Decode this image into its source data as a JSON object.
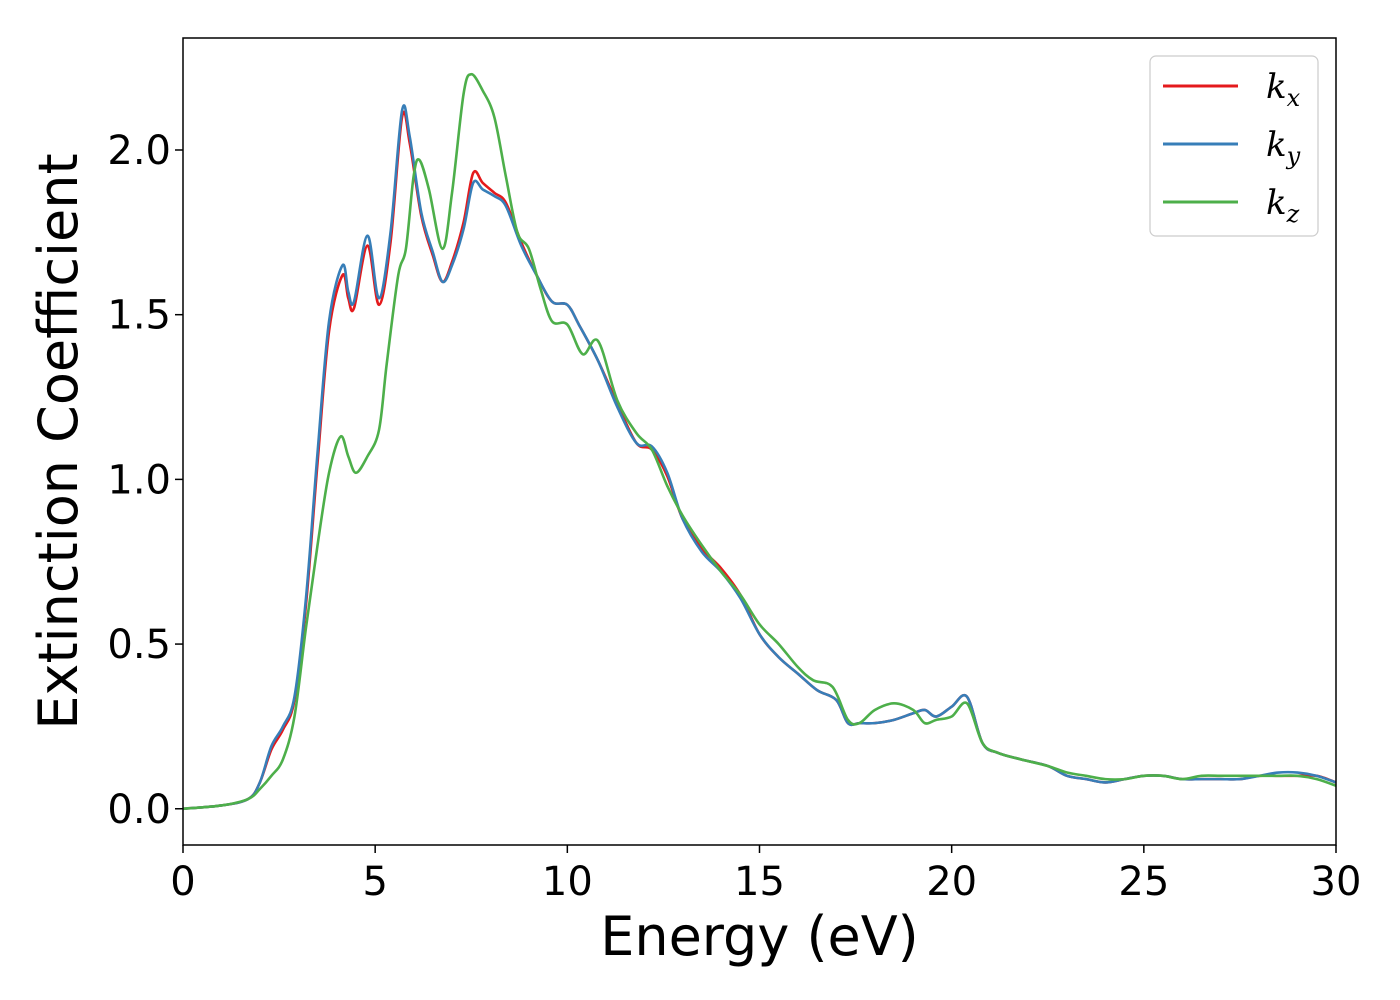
{
  "chart_data": {
    "type": "line",
    "xlabel": "Energy (eV)",
    "ylabel": "Extinction Coefficient",
    "xlim": [
      0,
      30
    ],
    "ylim": [
      -0.11,
      2.34
    ],
    "xticks": [
      0,
      5,
      10,
      15,
      20,
      25,
      30
    ],
    "xtick_labels": [
      "0",
      "5",
      "10",
      "15",
      "20",
      "25",
      "30"
    ],
    "yticks": [
      0.0,
      0.5,
      1.0,
      1.5,
      2.0
    ],
    "ytick_labels": [
      "0.0",
      "0.5",
      "1.0",
      "1.5",
      "2.0"
    ],
    "grid": false,
    "legend_position": "top-right",
    "series": [
      {
        "name": "k",
        "subscript": "x",
        "color": "#e41a1c",
        "x": [
          0,
          1,
          1.7,
          2,
          2.3,
          2.6,
          2.9,
          3.2,
          3.5,
          3.8,
          4.15,
          4.3,
          4.45,
          4.8,
          5.1,
          5.4,
          5.7,
          5.9,
          6.2,
          6.5,
          6.75,
          7.0,
          7.3,
          7.55,
          7.8,
          8.1,
          8.4,
          8.8,
          9.2,
          9.6,
          10.0,
          10.3,
          10.8,
          11.3,
          11.8,
          12.2,
          12.6,
          13.0,
          13.5,
          14.0,
          14.5,
          15.0,
          15.5,
          16.0,
          16.5,
          17.0,
          17.3,
          17.6,
          18.0,
          18.5,
          19.0,
          19.3,
          19.6,
          20.0,
          20.4,
          20.8,
          21.2,
          21.8,
          22.5,
          23.0,
          23.5,
          24.0,
          24.5,
          25.0,
          25.5,
          26.0,
          26.5,
          27.0,
          27.5,
          28.0,
          28.5,
          29.0,
          29.5,
          30.0
        ],
        "y": [
          0.0,
          0.01,
          0.03,
          0.08,
          0.18,
          0.24,
          0.33,
          0.62,
          1.05,
          1.45,
          1.62,
          1.55,
          1.52,
          1.71,
          1.53,
          1.72,
          2.1,
          2.02,
          1.8,
          1.68,
          1.6,
          1.66,
          1.78,
          1.93,
          1.9,
          1.87,
          1.84,
          1.72,
          1.62,
          1.54,
          1.53,
          1.47,
          1.36,
          1.23,
          1.11,
          1.09,
          1.01,
          0.88,
          0.79,
          0.73,
          0.65,
          0.53,
          0.46,
          0.41,
          0.36,
          0.33,
          0.26,
          0.26,
          0.26,
          0.27,
          0.29,
          0.3,
          0.28,
          0.31,
          0.34,
          0.2,
          0.17,
          0.15,
          0.13,
          0.1,
          0.09,
          0.08,
          0.09,
          0.1,
          0.1,
          0.09,
          0.09,
          0.09,
          0.09,
          0.1,
          0.1,
          0.1,
          0.1,
          0.08
        ]
      },
      {
        "name": "k",
        "subscript": "y",
        "color": "#377eb8",
        "x": [
          0,
          1,
          1.7,
          2,
          2.3,
          2.6,
          2.9,
          3.2,
          3.5,
          3.8,
          4.15,
          4.3,
          4.45,
          4.8,
          5.1,
          5.4,
          5.7,
          5.9,
          6.2,
          6.5,
          6.75,
          7.0,
          7.3,
          7.55,
          7.8,
          8.1,
          8.4,
          8.8,
          9.2,
          9.6,
          10.0,
          10.3,
          10.8,
          11.3,
          11.8,
          12.2,
          12.6,
          13.0,
          13.5,
          14.0,
          14.5,
          15.0,
          15.5,
          16.0,
          16.5,
          17.0,
          17.3,
          17.6,
          18.0,
          18.5,
          19.0,
          19.3,
          19.6,
          20.0,
          20.4,
          20.8,
          21.2,
          21.8,
          22.5,
          23.0,
          23.5,
          24.0,
          24.5,
          25.0,
          25.5,
          26.0,
          26.5,
          27.0,
          27.5,
          28.0,
          28.5,
          29.0,
          29.5,
          30.0
        ],
        "y": [
          0.0,
          0.01,
          0.03,
          0.08,
          0.19,
          0.25,
          0.34,
          0.64,
          1.08,
          1.48,
          1.65,
          1.57,
          1.54,
          1.74,
          1.55,
          1.75,
          2.12,
          2.04,
          1.81,
          1.69,
          1.6,
          1.65,
          1.76,
          1.9,
          1.88,
          1.86,
          1.83,
          1.71,
          1.62,
          1.54,
          1.53,
          1.47,
          1.36,
          1.22,
          1.11,
          1.1,
          1.02,
          0.88,
          0.78,
          0.72,
          0.64,
          0.53,
          0.46,
          0.41,
          0.36,
          0.33,
          0.26,
          0.26,
          0.26,
          0.27,
          0.29,
          0.3,
          0.28,
          0.31,
          0.34,
          0.2,
          0.17,
          0.15,
          0.13,
          0.1,
          0.09,
          0.08,
          0.09,
          0.1,
          0.1,
          0.09,
          0.09,
          0.09,
          0.09,
          0.1,
          0.11,
          0.11,
          0.1,
          0.08
        ]
      },
      {
        "name": "k",
        "subscript": "z",
        "color": "#4daf4a",
        "x": [
          0,
          1,
          1.7,
          2,
          2.3,
          2.6,
          2.9,
          3.2,
          3.5,
          3.8,
          4.1,
          4.3,
          4.5,
          4.8,
          5.1,
          5.3,
          5.6,
          5.8,
          6.0,
          6.15,
          6.4,
          6.75,
          7.0,
          7.3,
          7.5,
          7.8,
          8.1,
          8.4,
          8.7,
          9.0,
          9.3,
          9.6,
          10.0,
          10.4,
          10.8,
          11.3,
          11.8,
          12.2,
          12.6,
          13.0,
          13.5,
          14.0,
          14.5,
          15.0,
          15.5,
          16.0,
          16.4,
          16.9,
          17.3,
          17.6,
          18.0,
          18.5,
          19.0,
          19.3,
          19.6,
          20.0,
          20.4,
          20.8,
          21.2,
          21.8,
          22.5,
          23.0,
          23.5,
          24.0,
          24.5,
          25.0,
          25.5,
          26.0,
          26.5,
          27.0,
          27.5,
          28.0,
          28.5,
          29.0,
          29.5,
          30.0
        ],
        "y": [
          0.0,
          0.01,
          0.03,
          0.06,
          0.1,
          0.15,
          0.28,
          0.55,
          0.8,
          1.02,
          1.13,
          1.07,
          1.02,
          1.07,
          1.15,
          1.35,
          1.62,
          1.7,
          1.92,
          1.97,
          1.88,
          1.7,
          1.87,
          2.17,
          2.23,
          2.18,
          2.1,
          1.92,
          1.75,
          1.7,
          1.58,
          1.48,
          1.47,
          1.38,
          1.42,
          1.24,
          1.14,
          1.09,
          0.98,
          0.89,
          0.8,
          0.72,
          0.65,
          0.56,
          0.5,
          0.43,
          0.39,
          0.37,
          0.27,
          0.26,
          0.3,
          0.32,
          0.3,
          0.26,
          0.27,
          0.28,
          0.32,
          0.2,
          0.17,
          0.15,
          0.13,
          0.11,
          0.1,
          0.09,
          0.09,
          0.1,
          0.1,
          0.09,
          0.1,
          0.1,
          0.1,
          0.1,
          0.1,
          0.1,
          0.09,
          0.07
        ]
      }
    ]
  }
}
